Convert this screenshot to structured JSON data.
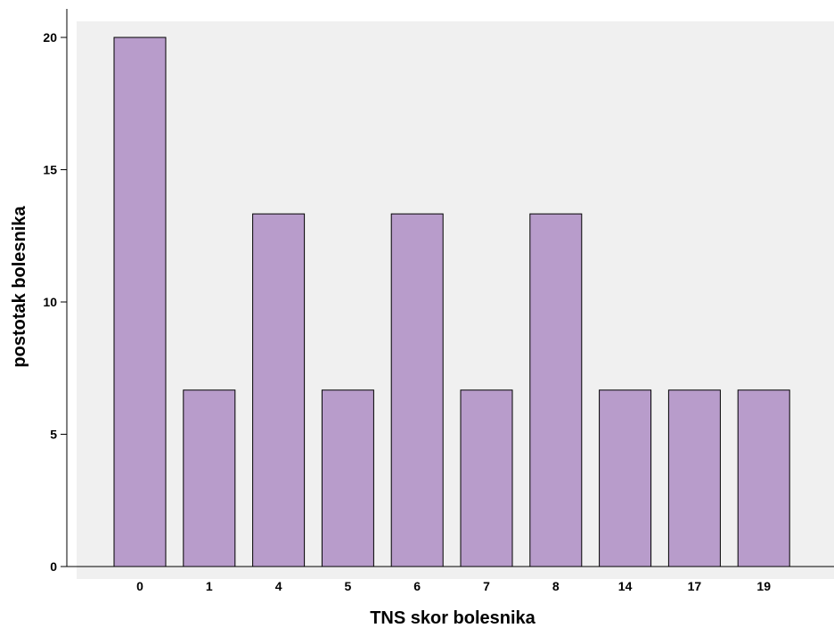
{
  "chart_data": {
    "type": "bar",
    "title": "",
    "xlabel": "TNS skor bolesnika",
    "ylabel": "postotak bolesnika",
    "categories": [
      "0",
      "1",
      "4",
      "5",
      "6",
      "7",
      "8",
      "14",
      "17",
      "19"
    ],
    "values": [
      20.0,
      6.67,
      13.33,
      6.67,
      13.33,
      6.67,
      13.33,
      6.67,
      6.67,
      6.67
    ],
    "ylim": [
      0,
      21
    ],
    "yticks": [
      0,
      5,
      10,
      15,
      20
    ],
    "grid": false,
    "legend": "none",
    "colors": {
      "bar_fill": "#b89ccb",
      "bar_stroke": "#000000",
      "plot_background": "#f0f0f0",
      "page_background": "#ffffff"
    }
  }
}
